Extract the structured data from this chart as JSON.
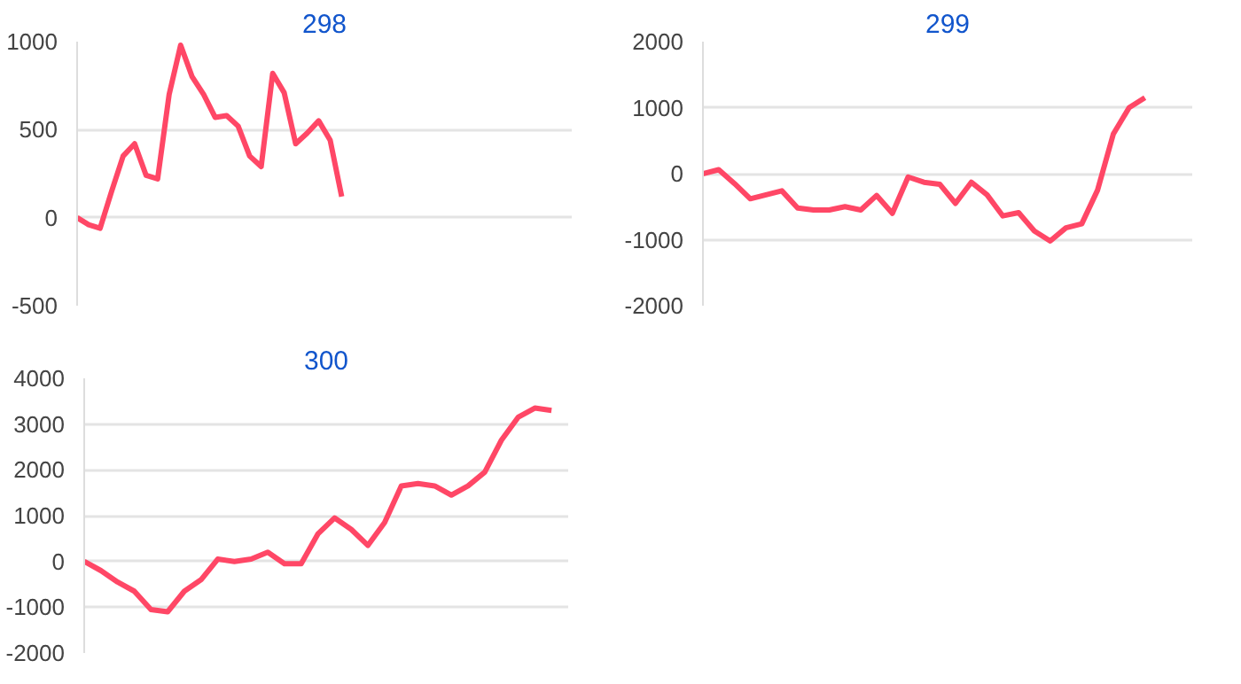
{
  "chart_data": [
    {
      "type": "line",
      "title": "298",
      "categories": [
        null,
        null,
        null,
        null,
        null,
        null,
        null,
        null,
        null,
        null,
        null,
        null,
        null,
        null,
        null,
        null,
        null,
        null,
        null,
        null,
        null,
        null,
        null,
        null,
        null,
        null,
        null,
        null,
        null,
        null,
        null,
        null,
        null,
        null,
        null,
        null,
        null,
        null,
        null,
        null,
        null,
        null,
        null,
        null
      ],
      "series": [
        {
          "color": "#ff4766",
          "values": [
            0,
            -40,
            -60,
            150,
            350,
            420,
            240,
            220,
            700,
            980,
            800,
            700,
            570,
            580,
            520,
            350,
            290,
            820,
            710,
            420,
            480,
            550,
            440,
            120,
            null,
            null,
            null,
            null,
            null,
            null,
            null,
            null,
            null,
            null,
            null,
            null,
            null,
            null,
            null,
            null,
            null,
            null,
            null,
            null
          ]
        }
      ],
      "ylim": [
        -500,
        1000
      ],
      "yticks": [
        -500,
        0,
        500,
        1000
      ],
      "grid": "y",
      "tick_labels": "y",
      "marker": "none",
      "line_style": "solid"
    },
    {
      "type": "line",
      "title": "299",
      "categories": [
        null,
        null,
        null,
        null,
        null,
        null,
        null,
        null,
        null,
        null,
        null,
        null,
        null,
        null,
        null,
        null,
        null,
        null,
        null,
        null,
        null,
        null,
        null,
        null,
        null,
        null,
        null,
        null,
        null,
        null,
        null,
        null
      ],
      "series": [
        {
          "color": "#ff4766",
          "values": [
            0,
            60,
            -150,
            -380,
            -320,
            -260,
            -520,
            -550,
            -550,
            -500,
            -550,
            -330,
            -600,
            -50,
            -130,
            -160,
            -450,
            -130,
            -320,
            -640,
            -590,
            -870,
            -1020,
            -820,
            -760,
            -250,
            600,
            1000,
            1150,
            null,
            null,
            null
          ]
        }
      ],
      "ylim": [
        -2000,
        2000
      ],
      "yticks": [
        -2000,
        -1000,
        0,
        1000,
        2000
      ],
      "grid": "y",
      "tick_labels": "y",
      "marker": "none",
      "line_style": "solid"
    },
    {
      "type": "line",
      "title": "300",
      "categories": [
        null,
        null,
        null,
        null,
        null,
        null,
        null,
        null,
        null,
        null,
        null,
        null,
        null,
        null,
        null,
        null,
        null,
        null,
        null,
        null,
        null,
        null,
        null,
        null,
        null,
        null,
        null,
        null,
        null,
        null
      ],
      "series": [
        {
          "color": "#ff4766",
          "values": [
            0,
            -200,
            -450,
            -650,
            -1050,
            -1100,
            -650,
            -400,
            50,
            0,
            50,
            200,
            -50,
            -50,
            600,
            950,
            700,
            350,
            850,
            1650,
            1700,
            1650,
            1450,
            1650,
            1950,
            2650,
            3150,
            3350,
            3300,
            null
          ]
        }
      ],
      "ylim": [
        -2000,
        4000
      ],
      "yticks": [
        -2000,
        -1000,
        0,
        1000,
        2000,
        3000,
        4000
      ],
      "grid": "y",
      "tick_labels": "y",
      "marker": "none",
      "line_style": "solid"
    }
  ]
}
